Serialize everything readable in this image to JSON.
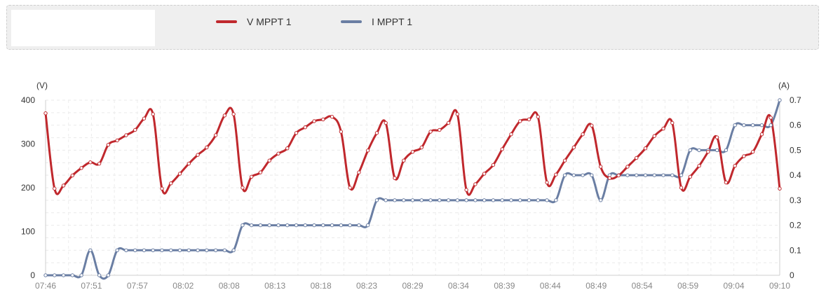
{
  "legend": {
    "items": [
      {
        "label": "V MPPT 1",
        "color": "#c0282d"
      },
      {
        "label": "I MPPT 1",
        "color": "#6a7ea3"
      }
    ]
  },
  "chart_data": {
    "type": "line",
    "y_left_label": "(V)",
    "y_right_label": "(A)",
    "y_left_lim": [
      0,
      400
    ],
    "y_right_lim": [
      0,
      0.7
    ],
    "y_left_ticks": [
      "0",
      "100",
      "200",
      "300",
      "400"
    ],
    "y_right_ticks": [
      "0",
      "0.1",
      "0.2",
      "0.3",
      "0.4",
      "0.5",
      "0.6",
      "0.7"
    ],
    "x_tick_labels": [
      "07:46",
      "07:51",
      "07:57",
      "08:02",
      "08:08",
      "08:13",
      "08:18",
      "08:23",
      "08:29",
      "08:34",
      "08:39",
      "08:44",
      "08:49",
      "08:54",
      "08:59",
      "09:04",
      "09:10"
    ],
    "grid": true,
    "series": [
      {
        "name": "V MPPT 1",
        "axis": "left",
        "color": "#c0282d",
        "values": [
          370,
          198,
          205,
          228,
          245,
          258,
          255,
          298,
          308,
          320,
          332,
          358,
          368,
          198,
          210,
          232,
          255,
          275,
          292,
          320,
          365,
          368,
          200,
          225,
          235,
          262,
          278,
          290,
          325,
          338,
          352,
          356,
          362,
          328,
          200,
          235,
          285,
          325,
          348,
          222,
          262,
          282,
          292,
          328,
          332,
          348,
          368,
          195,
          208,
          232,
          252,
          288,
          322,
          352,
          356,
          362,
          212,
          230,
          262,
          292,
          322,
          342,
          248,
          222,
          228,
          248,
          268,
          290,
          318,
          335,
          348,
          200,
          225,
          250,
          282,
          315,
          212,
          250,
          272,
          282,
          322,
          360,
          198
        ]
      },
      {
        "name": "I MPPT 1",
        "axis": "right",
        "color": "#6a7ea3",
        "values": [
          0,
          0,
          0,
          0,
          0,
          0.1,
          0,
          0,
          0.1,
          0.1,
          0.1,
          0.1,
          0.1,
          0.1,
          0.1,
          0.1,
          0.1,
          0.1,
          0.1,
          0.1,
          0.1,
          0.1,
          0.2,
          0.2,
          0.2,
          0.2,
          0.2,
          0.2,
          0.2,
          0.2,
          0.2,
          0.2,
          0.2,
          0.2,
          0.2,
          0.2,
          0.2,
          0.3,
          0.3,
          0.3,
          0.3,
          0.3,
          0.3,
          0.3,
          0.3,
          0.3,
          0.3,
          0.3,
          0.3,
          0.3,
          0.3,
          0.3,
          0.3,
          0.3,
          0.3,
          0.3,
          0.3,
          0.3,
          0.4,
          0.4,
          0.4,
          0.4,
          0.3,
          0.4,
          0.4,
          0.4,
          0.4,
          0.4,
          0.4,
          0.4,
          0.4,
          0.4,
          0.5,
          0.5,
          0.5,
          0.5,
          0.5,
          0.6,
          0.6,
          0.6,
          0.6,
          0.6,
          0.7
        ]
      }
    ]
  }
}
